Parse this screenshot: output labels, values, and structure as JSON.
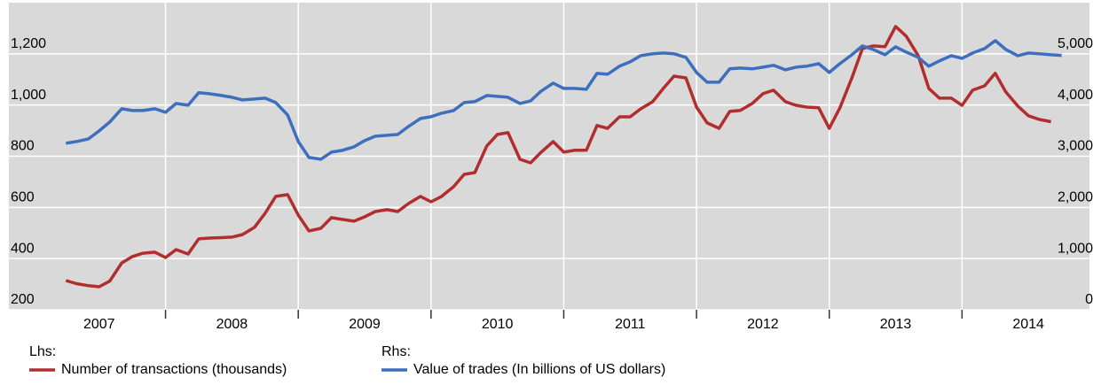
{
  "chart_data": {
    "type": "line",
    "ylabel": "Lhs:",
    "y2label": "Rhs:",
    "x": [
      2007.25,
      2007.33,
      2007.42,
      2007.5,
      2007.58,
      2007.67,
      2007.75,
      2007.83,
      2007.92,
      2008,
      2008.08,
      2008.17,
      2008.25,
      2008.33,
      2008.42,
      2008.5,
      2008.58,
      2008.67,
      2008.75,
      2008.83,
      2008.92,
      2009,
      2009.08,
      2009.17,
      2009.25,
      2009.33,
      2009.42,
      2009.5,
      2009.58,
      2009.67,
      2009.75,
      2009.83,
      2009.92,
      2010,
      2010.08,
      2010.17,
      2010.25,
      2010.33,
      2010.42,
      2010.5,
      2010.58,
      2010.67,
      2010.75,
      2010.83,
      2010.92,
      2011,
      2011.08,
      2011.17,
      2011.25,
      2011.33,
      2011.42,
      2011.5,
      2011.58,
      2011.67,
      2011.75,
      2011.83,
      2011.92,
      2012,
      2012.08,
      2012.17,
      2012.25,
      2012.33,
      2012.42,
      2012.5,
      2012.58,
      2012.67,
      2012.75,
      2012.83,
      2012.92,
      2013,
      2013.08,
      2013.17,
      2013.25,
      2013.33,
      2013.42,
      2013.5,
      2013.58,
      2013.67,
      2013.75,
      2013.83,
      2013.92,
      2014,
      2014.08,
      2014.17,
      2014.25,
      2014.33,
      2014.42,
      2014.5,
      2014.58,
      2014.67,
      2014.75
    ],
    "series": [
      {
        "name": "Number of transactions (thousands)",
        "color": "#b22e2e",
        "axis": "y",
        "values": [
          314,
          302,
          294,
          290,
          312,
          383,
          408,
          421,
          425,
          404,
          435,
          418,
          477,
          480,
          482,
          484,
          494,
          522,
          577,
          643,
          650,
          570,
          508,
          518,
          560,
          553,
          546,
          563,
          584,
          591,
          584,
          615,
          643,
          622,
          643,
          681,
          729,
          736,
          840,
          885,
          892,
          788,
          774,
          816,
          857,
          816,
          823,
          823,
          920,
          909,
          954,
          954,
          985,
          1013,
          1065,
          1113,
          1106,
          992,
          930,
          909,
          975,
          979,
          1006,
          1044,
          1058,
          1013,
          999,
          992,
          989,
          909,
          989,
          1106,
          1221,
          1231,
          1228,
          1307,
          1269,
          1193,
          1065,
          1027,
          1027,
          999,
          1058,
          1075,
          1124,
          1051,
          996,
          958,
          944,
          935,
          null
        ]
      },
      {
        "name": "Value of trades (In billions of US dollars)",
        "color": "#3d6fbe",
        "axis": "y2",
        "values": [
          3252,
          3287,
          3339,
          3495,
          3668,
          3927,
          3893,
          3893,
          3927,
          3858,
          4031,
          3996,
          4239,
          4221,
          4187,
          4152,
          4100,
          4117,
          4135,
          4048,
          3806,
          3287,
          2976,
          2941,
          3079,
          3114,
          3183,
          3304,
          3391,
          3408,
          3425,
          3581,
          3737,
          3771,
          3841,
          3893,
          4048,
          4066,
          4187,
          4169,
          4152,
          4031,
          4083,
          4273,
          4429,
          4325,
          4325,
          4308,
          4619,
          4602,
          4758,
          4844,
          4965,
          5000,
          5017,
          5000,
          4931,
          4636,
          4446,
          4446,
          4706,
          4723,
          4706,
          4740,
          4775,
          4688,
          4740,
          4758,
          4809,
          4636,
          4809,
          4982,
          5155,
          5086,
          4982,
          5138,
          5034,
          4931,
          4758,
          4862,
          4965,
          4913,
          5017,
          5103,
          5259,
          5086,
          4965,
          5017,
          5000,
          4982,
          4970
        ]
      }
    ],
    "xlim": [
      2006.82,
      2014.96
    ],
    "xticks": [
      {
        "value": 2007.5,
        "label": "2007"
      },
      {
        "value": 2008.5,
        "label": "2008"
      },
      {
        "value": 2009.5,
        "label": "2009"
      },
      {
        "value": 2010.5,
        "label": "2010"
      },
      {
        "value": 2011.5,
        "label": "2011"
      },
      {
        "value": 2012.5,
        "label": "2012"
      },
      {
        "value": 2013.5,
        "label": "2013"
      },
      {
        "value": 2014.5,
        "label": "2014"
      }
    ],
    "ylim": [
      200,
      1400
    ],
    "yticks": [
      200,
      400,
      600,
      800,
      {
        "value": 1000,
        "label": "1,000"
      },
      {
        "value": 1200,
        "label": "1,200"
      }
    ],
    "y2lim": [
      0,
      6000
    ],
    "y2ticks": [
      0,
      {
        "value": 1000,
        "label": "1,000"
      },
      {
        "value": 2000,
        "label": "2,000"
      },
      {
        "value": 3000,
        "label": "3,000"
      },
      {
        "value": 4000,
        "label": "4,000"
      },
      {
        "value": 5000,
        "label": "5,000"
      }
    ],
    "grid": true
  }
}
